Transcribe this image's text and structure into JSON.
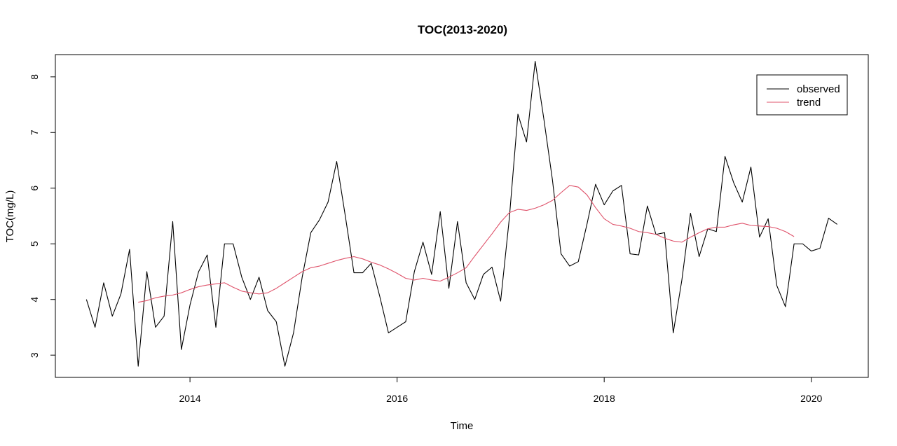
{
  "chart_data": {
    "type": "line",
    "title": "TOC(2013-2020)",
    "xlabel": "Time",
    "ylabel": "TOC(mg/L)",
    "xlim": [
      2012.7,
      2020.55
    ],
    "ylim": [
      2.6,
      8.4
    ],
    "x_ticks": [
      2014,
      2016,
      2018,
      2020
    ],
    "x_tick_labels": [
      "2014",
      "2016",
      "2018",
      "2020"
    ],
    "y_ticks": [
      3,
      4,
      5,
      6,
      7,
      8
    ],
    "y_tick_labels": [
      "3",
      "4",
      "5",
      "6",
      "7",
      "8"
    ],
    "grid": false,
    "legend_position": "top-right",
    "series": [
      {
        "name": "observed",
        "color": "#000000",
        "start": 2013.0,
        "step": 0.08333333,
        "values": [
          4.0,
          3.5,
          4.3,
          3.7,
          4.1,
          4.9,
          2.8,
          4.5,
          3.5,
          3.7,
          5.4,
          3.1,
          3.9,
          4.5,
          4.8,
          3.5,
          5.0,
          5.0,
          4.4,
          4.0,
          4.4,
          3.8,
          3.6,
          2.8,
          3.4,
          4.4,
          5.2,
          5.43,
          5.75,
          6.48,
          5.5,
          4.48,
          4.48,
          4.65,
          4.05,
          3.4,
          3.5,
          3.6,
          4.5,
          5.03,
          4.45,
          5.58,
          4.2,
          5.4,
          4.3,
          4.0,
          4.45,
          4.58,
          3.97,
          5.45,
          7.33,
          6.83,
          8.28,
          7.25,
          6.15,
          4.82,
          4.6,
          4.68,
          5.35,
          6.07,
          5.7,
          5.95,
          6.05,
          4.82,
          4.8,
          5.68,
          5.17,
          5.2,
          3.4,
          4.35,
          5.55,
          4.77,
          5.27,
          5.22,
          6.57,
          6.1,
          5.75,
          6.38,
          5.12,
          5.45,
          4.25,
          3.87,
          5.0,
          5.0,
          4.87,
          4.92,
          5.46,
          5.35
        ]
      },
      {
        "name": "trend",
        "color": "#DF536B",
        "start": 2013.5,
        "step": 0.08333333,
        "values": [
          3.95,
          3.98,
          4.03,
          4.06,
          4.08,
          4.12,
          4.18,
          4.23,
          4.26,
          4.28,
          4.3,
          4.22,
          4.15,
          4.12,
          4.1,
          4.12,
          4.2,
          4.3,
          4.4,
          4.5,
          4.57,
          4.6,
          4.65,
          4.7,
          4.74,
          4.77,
          4.73,
          4.67,
          4.62,
          4.55,
          4.47,
          4.38,
          4.35,
          4.38,
          4.35,
          4.33,
          4.4,
          4.48,
          4.57,
          4.78,
          4.98,
          5.18,
          5.39,
          5.56,
          5.62,
          5.6,
          5.64,
          5.7,
          5.78,
          5.92,
          6.05,
          6.02,
          5.88,
          5.65,
          5.45,
          5.35,
          5.32,
          5.28,
          5.22,
          5.2,
          5.17,
          5.1,
          5.05,
          5.03,
          5.12,
          5.2,
          5.27,
          5.3,
          5.3,
          5.34,
          5.37,
          5.33,
          5.32,
          5.31,
          5.28,
          5.22,
          5.13
        ]
      }
    ]
  }
}
